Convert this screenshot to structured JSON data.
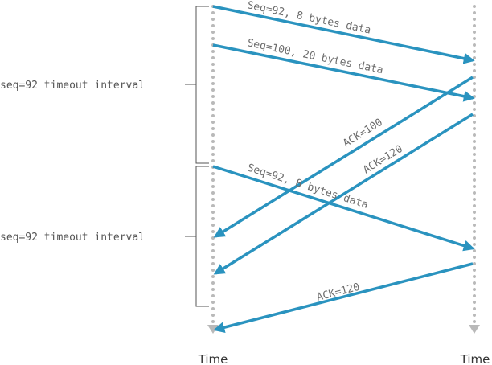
{
  "colors": {
    "arrow": "#2a93bf",
    "timeline": "#b9b9b9",
    "text": "#6d6d6d"
  },
  "timelines": {
    "left_label": "Time",
    "right_label": "Time"
  },
  "timeouts": [
    {
      "label": "seq=92 timeout interval"
    },
    {
      "label": "seq=92 timeout interval"
    }
  ],
  "messages": [
    {
      "label": "Seq=92, 8 bytes data",
      "direction": "left-to-right"
    },
    {
      "label": "Seq=100, 20 bytes data",
      "direction": "left-to-right"
    },
    {
      "label": "ACK=100",
      "direction": "right-to-left"
    },
    {
      "label": "ACK=120",
      "direction": "right-to-left"
    },
    {
      "label": "Seq=92, 8 bytes data",
      "direction": "left-to-right"
    },
    {
      "label": "ACK=120",
      "direction": "right-to-left"
    }
  ]
}
